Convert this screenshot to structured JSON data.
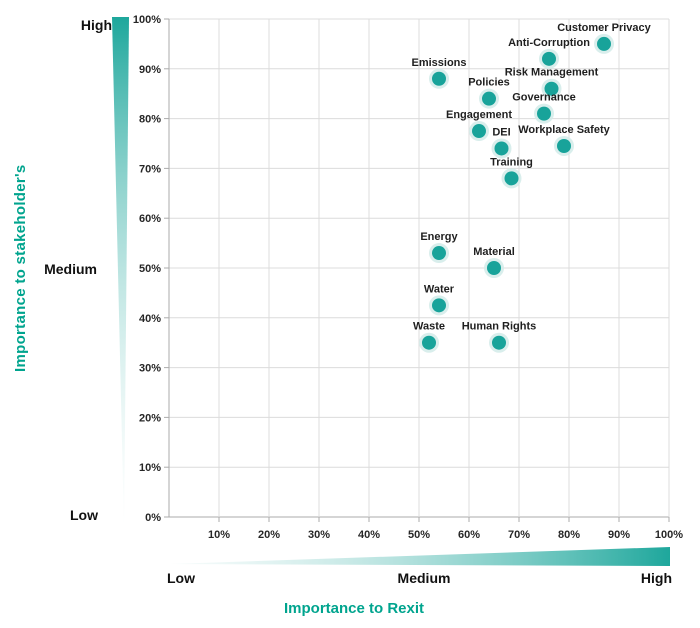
{
  "chart_data": {
    "type": "scatter",
    "title": "",
    "xlabel": "Importance to Rexit",
    "ylabel": "Importance to stakeholder's",
    "xlim": [
      0,
      100
    ],
    "ylim": [
      0,
      100
    ],
    "grid": true,
    "legend": false,
    "x_ticks": [
      "10%",
      "20%",
      "30%",
      "40%",
      "50%",
      "60%",
      "70%",
      "80%",
      "90%",
      "100%"
    ],
    "y_ticks": [
      "0%",
      "10%",
      "20%",
      "30%",
      "40%",
      "50%",
      "60%",
      "70%",
      "80%",
      "90%",
      "100%"
    ],
    "x_scale_labels": [
      "Low",
      "Medium",
      "High"
    ],
    "y_scale_labels": [
      "Low",
      "Medium",
      "High"
    ],
    "points": [
      {
        "label": "Customer Privacy",
        "x": 87,
        "y": 95
      },
      {
        "label": "Anti-Corruption",
        "x": 76,
        "y": 92
      },
      {
        "label": "Risk Management",
        "x": 76.5,
        "y": 86
      },
      {
        "label": "Emissions",
        "x": 54,
        "y": 88
      },
      {
        "label": "Policies",
        "x": 64,
        "y": 84
      },
      {
        "label": "Governance",
        "x": 75,
        "y": 81
      },
      {
        "label": "Engagement",
        "x": 62,
        "y": 77.5
      },
      {
        "label": "DEI",
        "x": 66.5,
        "y": 74
      },
      {
        "label": "Workplace Safety",
        "x": 79,
        "y": 74.5
      },
      {
        "label": "Training",
        "x": 68.5,
        "y": 68
      },
      {
        "label": "Energy",
        "x": 54,
        "y": 53
      },
      {
        "label": "Material",
        "x": 65,
        "y": 50
      },
      {
        "label": "Water",
        "x": 54,
        "y": 42.5
      },
      {
        "label": "Waste",
        "x": 52,
        "y": 35
      },
      {
        "label": "Human Rights",
        "x": 66,
        "y": 35
      }
    ],
    "colors": {
      "point": "#18a39a",
      "point_halo": "#d2ebe9",
      "wedge_dark": "#1ea79c",
      "wedge_light": "#eaf6f5",
      "axis_title": "#00a48e",
      "gridline": "#dcdcdc",
      "axis_line": "#ababab",
      "text": "#1f1f1f"
    }
  }
}
